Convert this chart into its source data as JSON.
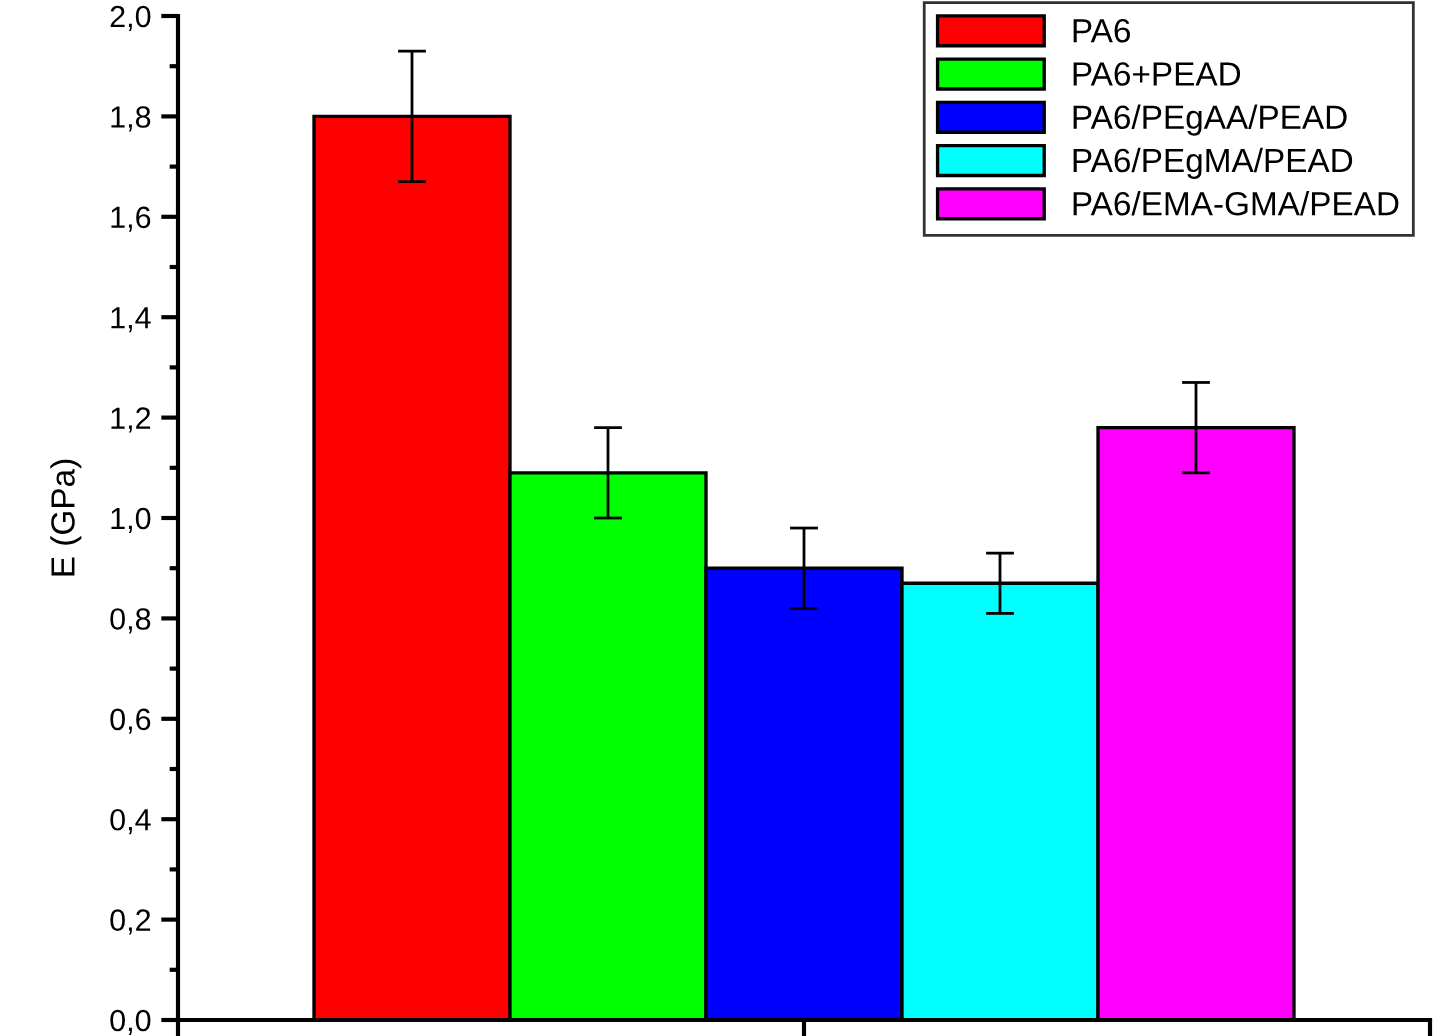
{
  "chart_data": {
    "type": "bar",
    "ylabel": "E (GPa)",
    "categories": [
      null
    ],
    "series": [
      {
        "name": "PA6",
        "color": "#ff0000",
        "values": [
          1.8
        ],
        "errors": [
          0.13
        ]
      },
      {
        "name": "PA6+PEAD",
        "color": "#00ff00",
        "values": [
          1.09
        ],
        "errors": [
          0.09
        ]
      },
      {
        "name": "PA6/PEgAA/PEAD",
        "color": "#0000ff",
        "values": [
          0.9
        ],
        "errors": [
          0.08
        ]
      },
      {
        "name": "PA6/PEgMA/PEAD",
        "color": "#00ffff",
        "values": [
          0.87
        ],
        "errors": [
          0.06
        ]
      },
      {
        "name": "PA6/EMA-GMA/PEAD",
        "color": "#ff00ff",
        "values": [
          1.18
        ],
        "errors": [
          0.09
        ]
      }
    ],
    "ylim": [
      0,
      2.0
    ],
    "yticks": [
      {
        "value": 0,
        "label": "0,0"
      },
      {
        "value": 0.2,
        "label": "0,2"
      },
      {
        "value": 0.4,
        "label": "0,4"
      },
      {
        "value": 0.6,
        "label": "0,6"
      },
      {
        "value": 0.8,
        "label": "0,8"
      },
      {
        "value": 1.0,
        "label": "1,0"
      },
      {
        "value": 1.2,
        "label": "1,2"
      },
      {
        "value": 1.4,
        "label": "1,4"
      },
      {
        "value": 1.6,
        "label": "1,6"
      },
      {
        "value": 1.8,
        "label": "1,8"
      },
      {
        "value": 2.0,
        "label": "2,0"
      }
    ],
    "tick_labels": "y",
    "legend": "top right",
    "grid": false
  }
}
